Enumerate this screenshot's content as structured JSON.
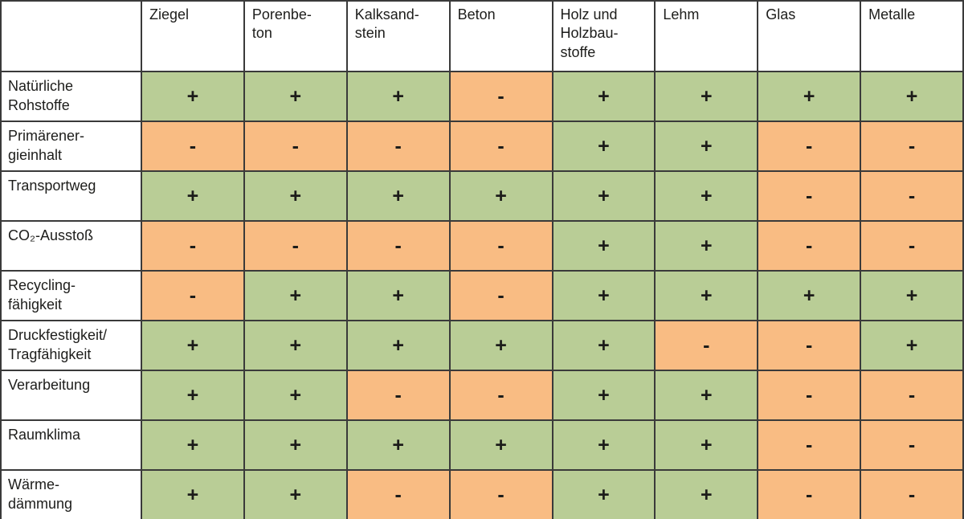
{
  "table": {
    "corner_label": "",
    "columns": [
      "Ziegel",
      "Porenbe-\nton",
      "Kalksand-\nstein",
      "Beton",
      "Holz und\nHolzbau-\nstoffe",
      "Lehm",
      "Glas",
      "Metalle"
    ],
    "rows": [
      {
        "label": "Natürliche\nRohstoffe",
        "values": [
          "+",
          "+",
          "+",
          "-",
          "+",
          "+",
          "+",
          "+"
        ]
      },
      {
        "label": "Primärener-\ngieinhalt",
        "values": [
          "-",
          "-",
          "-",
          "-",
          "+",
          "+",
          "-",
          "-"
        ]
      },
      {
        "label": "Transportweg",
        "values": [
          "+",
          "+",
          "+",
          "+",
          "+",
          "+",
          "-",
          "-"
        ]
      },
      {
        "label": "CO₂-Ausstoß",
        "values": [
          "-",
          "-",
          "-",
          "-",
          "+",
          "+",
          "-",
          "-"
        ]
      },
      {
        "label": "Recycling-\nfähigkeit",
        "values": [
          "-",
          "+",
          "+",
          "-",
          "+",
          "+",
          "+",
          "+"
        ]
      },
      {
        "label": "Druckfestigkeit/\nTragfähigkeit",
        "values": [
          "+",
          "+",
          "+",
          "+",
          "+",
          "-",
          "-",
          "+"
        ]
      },
      {
        "label": "Verarbeitung",
        "values": [
          "+",
          "+",
          "-",
          "-",
          "+",
          "+",
          "-",
          "-"
        ]
      },
      {
        "label": "Raumklima",
        "values": [
          "+",
          "+",
          "+",
          "+",
          "+",
          "+",
          "-",
          "-"
        ]
      },
      {
        "label": "Wärme-\ndämmung",
        "values": [
          "+",
          "+",
          "-",
          "-",
          "+",
          "+",
          "-",
          "-"
        ]
      }
    ],
    "legend": {
      "positive_symbol": "+",
      "negative_symbol": "-"
    },
    "colors": {
      "positive_bg": "#b9cd96",
      "negative_bg": "#f9bc83",
      "border": "#3a3a3a",
      "text": "#1d1d1b"
    }
  }
}
